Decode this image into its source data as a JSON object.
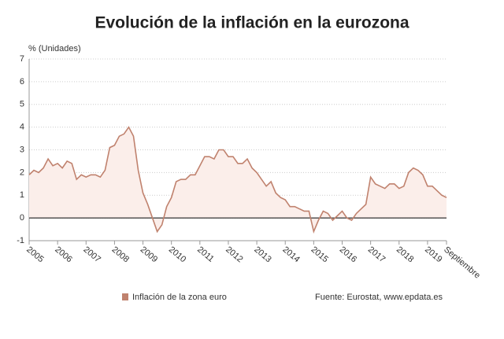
{
  "chart_data": {
    "type": "line",
    "title": "Evolución de la inflación en la eurozona",
    "y_label": "% (Unidades)",
    "source": "Fuente: Eurostat, www.epdata.es",
    "categories": [
      "2005",
      null,
      null,
      null,
      null,
      null,
      "2006",
      null,
      null,
      null,
      null,
      null,
      "2007",
      null,
      null,
      null,
      null,
      null,
      "2008",
      null,
      null,
      null,
      null,
      null,
      "2009",
      null,
      null,
      null,
      null,
      null,
      "2010",
      null,
      null,
      null,
      null,
      null,
      "2011",
      null,
      null,
      null,
      null,
      null,
      "2012",
      null,
      null,
      null,
      null,
      null,
      "2013",
      null,
      null,
      null,
      null,
      null,
      "2014",
      null,
      null,
      null,
      null,
      null,
      "2015",
      null,
      null,
      null,
      null,
      null,
      "2016",
      null,
      null,
      null,
      null,
      null,
      "2017",
      null,
      null,
      null,
      null,
      null,
      "2018",
      null,
      null,
      null,
      null,
      null,
      "2019",
      null,
      null,
      null,
      "Septiembre"
    ],
    "series": [
      {
        "name": "Inflación de la zona euro",
        "color": "#c0826e",
        "values": [
          1.9,
          2.1,
          2.0,
          2.2,
          2.6,
          2.3,
          2.4,
          2.2,
          2.5,
          2.4,
          1.7,
          1.9,
          1.8,
          1.9,
          1.9,
          1.8,
          2.1,
          3.1,
          3.2,
          3.6,
          3.7,
          4.0,
          3.6,
          2.1,
          1.1,
          0.6,
          0.0,
          -0.6,
          -0.3,
          0.5,
          0.9,
          1.6,
          1.7,
          1.7,
          1.9,
          1.9,
          2.3,
          2.7,
          2.7,
          2.6,
          3.0,
          3.0,
          2.7,
          2.7,
          2.4,
          2.4,
          2.6,
          2.2,
          2.0,
          1.7,
          1.4,
          1.6,
          1.1,
          0.9,
          0.8,
          0.5,
          0.5,
          0.4,
          0.3,
          0.3,
          -0.6,
          -0.1,
          0.3,
          0.2,
          -0.1,
          0.1,
          0.3,
          0.0,
          -0.1,
          0.2,
          0.4,
          0.6,
          1.8,
          1.5,
          1.4,
          1.3,
          1.5,
          1.5,
          1.3,
          1.4,
          2.0,
          2.2,
          2.1,
          1.9,
          1.4,
          1.4,
          1.2,
          1.0,
          0.9
        ]
      }
    ],
    "ylim": [
      -1,
      7
    ],
    "yticks": [
      -1,
      0,
      1,
      2,
      3,
      4,
      5,
      6,
      7
    ],
    "grid": true,
    "fill_color": "#fbeeea"
  }
}
